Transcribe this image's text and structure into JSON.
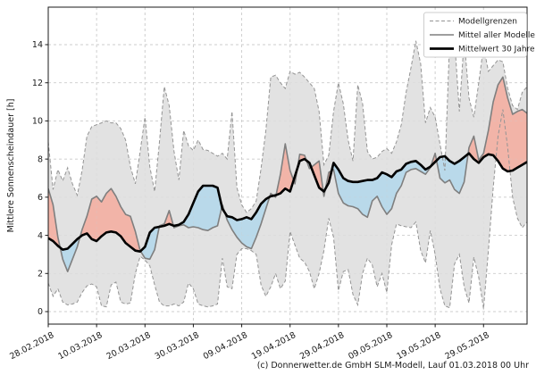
{
  "chart_data": {
    "type": "line",
    "title": "",
    "ylabel": "Mittlere Sonnenscheindauer [h]",
    "caption": "(c) Donnerwetter.de GmbH SLM-Modell, Lauf 01.03.2018 00 Uhr",
    "grid": true,
    "legend_position": "top-right",
    "legend": [
      "Modellgrenzen",
      "Mittel aller Modelle",
      "Mittelwert 30 Jahre"
    ],
    "y_ticks": [
      0,
      2,
      4,
      6,
      8,
      10,
      12,
      14
    ],
    "ylim": [
      -0.65,
      15.97
    ],
    "x_tick_days": [
      0,
      10,
      20,
      30,
      40,
      50,
      60,
      70,
      80,
      90
    ],
    "x_tick_labels": [
      "28.02.2018",
      "10.03.2018",
      "20.03.2018",
      "30.03.2018",
      "09.04.2018",
      "19.04.2018",
      "29.04.2018",
      "09.05.2018",
      "19.05.2018",
      "29.05.2018"
    ],
    "xlim_days": [
      0,
      99
    ],
    "x_axis_note": "Tage ab 28.02.2018, 1 Wert pro Tag",
    "colors": {
      "band_fill": "#e2e2e2",
      "band_edge": "#949494",
      "model_mean_line": "#7f7f7f",
      "mean_30y_line": "#000000",
      "above_mean_fill": "#f2b4a8",
      "below_mean_fill": "#b9d9ea",
      "grid_line": "#cdcdcd",
      "axis": "#1a1a1a"
    },
    "series": [
      {
        "name": "Modellgrenzen (Minimum)",
        "role": "band_min",
        "style": "dashed",
        "values": [
          1.5,
          0.8,
          1.2,
          0.5,
          0.35,
          0.4,
          0.5,
          1.0,
          1.35,
          1.45,
          1.3,
          0.3,
          0.25,
          1.4,
          1.55,
          0.5,
          0.4,
          0.45,
          2.0,
          2.9,
          2.7,
          2.4,
          1.4,
          0.5,
          0.3,
          0.3,
          0.4,
          0.3,
          0.5,
          1.5,
          1.2,
          0.4,
          0.3,
          0.25,
          0.3,
          0.4,
          2.8,
          1.3,
          1.2,
          3.0,
          3.3,
          3.3,
          3.2,
          3.0,
          1.4,
          0.8,
          1.3,
          2.0,
          1.2,
          1.6,
          4.2,
          3.5,
          2.8,
          2.6,
          2.1,
          1.2,
          2.0,
          3.2,
          4.9,
          3.9,
          1.1,
          2.1,
          2.2,
          0.9,
          0.35,
          2.0,
          2.8,
          2.45,
          1.3,
          2.0,
          1.0,
          3.5,
          4.6,
          4.5,
          4.45,
          4.4,
          4.7,
          3.2,
          2.55,
          4.25,
          3.0,
          1.2,
          0.3,
          0.2,
          2.5,
          3.0,
          1.3,
          0.45,
          2.85,
          1.8,
          0.15,
          3.2,
          6.5,
          9.2,
          10.6,
          8.6,
          6.0,
          4.9,
          4.4,
          4.7
        ]
      },
      {
        "name": "Modellgrenzen (Maximum)",
        "role": "band_max",
        "style": "dashed",
        "values": [
          8.9,
          6.4,
          7.45,
          6.85,
          7.55,
          6.7,
          6.1,
          7.4,
          9.2,
          9.7,
          9.8,
          9.9,
          10.0,
          9.9,
          9.9,
          9.6,
          9.0,
          7.6,
          6.7,
          8.4,
          10.2,
          7.6,
          6.3,
          8.9,
          11.8,
          10.8,
          8.4,
          6.9,
          9.5,
          8.7,
          8.45,
          9.0,
          8.5,
          8.45,
          8.3,
          8.15,
          8.3,
          8.0,
          10.5,
          6.5,
          5.6,
          5.2,
          5.4,
          5.8,
          7.5,
          9.5,
          12.3,
          12.4,
          12.0,
          11.7,
          12.6,
          12.45,
          12.55,
          12.3,
          12.0,
          11.7,
          10.5,
          7.7,
          8.2,
          10.5,
          12.0,
          10.9,
          9.0,
          7.9,
          11.9,
          10.9,
          8.4,
          8.0,
          8.1,
          8.4,
          8.55,
          8.3,
          8.9,
          9.8,
          11.5,
          12.8,
          14.2,
          13.0,
          9.9,
          10.7,
          10.2,
          8.8,
          7.4,
          14.3,
          14.3,
          10.5,
          14.3,
          11.2,
          10.2,
          12.0,
          13.9,
          12.6,
          12.9,
          13.2,
          13.1,
          11.7,
          10.8,
          10.6,
          11.5,
          11.8
        ]
      },
      {
        "name": "Mittel aller Modelle",
        "role": "model_mean",
        "style": "solid",
        "values": [
          6.45,
          5.6,
          3.9,
          2.75,
          2.1,
          2.75,
          3.4,
          4.3,
          5.0,
          5.9,
          6.05,
          5.75,
          6.2,
          6.45,
          6.05,
          5.5,
          5.1,
          5.0,
          4.2,
          3.2,
          2.8,
          2.75,
          3.25,
          4.5,
          4.6,
          5.3,
          4.4,
          4.5,
          4.55,
          4.4,
          4.45,
          4.4,
          4.3,
          4.25,
          4.4,
          4.5,
          5.6,
          4.8,
          4.3,
          3.9,
          3.6,
          3.4,
          3.3,
          3.9,
          4.6,
          5.4,
          6.2,
          6.0,
          7.2,
          8.8,
          7.4,
          6.7,
          8.25,
          8.2,
          7.5,
          7.7,
          7.9,
          6.05,
          7.3,
          7.45,
          6.2,
          5.7,
          5.55,
          5.5,
          5.4,
          5.1,
          4.95,
          5.8,
          6.05,
          5.5,
          5.1,
          5.4,
          6.2,
          6.6,
          7.3,
          7.45,
          7.5,
          7.35,
          7.2,
          7.55,
          8.3,
          7.0,
          6.75,
          6.9,
          6.4,
          6.2,
          6.8,
          8.6,
          9.2,
          7.95,
          8.3,
          9.5,
          11.0,
          11.9,
          12.3,
          11.2,
          10.35,
          10.5,
          10.6,
          10.4
        ]
      },
      {
        "name": "Mittelwert 30 Jahre",
        "role": "mean_30y",
        "style": "solid_thick",
        "values": [
          3.85,
          3.7,
          3.45,
          3.25,
          3.3,
          3.55,
          3.8,
          4.0,
          4.1,
          3.8,
          3.7,
          3.95,
          4.15,
          4.2,
          4.15,
          3.95,
          3.6,
          3.4,
          3.2,
          3.15,
          3.4,
          4.15,
          4.4,
          4.45,
          4.5,
          4.6,
          4.5,
          4.55,
          4.7,
          5.1,
          5.7,
          6.3,
          6.6,
          6.6,
          6.6,
          6.5,
          5.4,
          5.0,
          4.95,
          4.8,
          4.85,
          4.95,
          4.85,
          5.2,
          5.65,
          5.9,
          6.05,
          6.1,
          6.2,
          6.45,
          6.3,
          7.1,
          7.9,
          8.0,
          7.8,
          7.15,
          6.5,
          6.3,
          6.75,
          7.8,
          7.45,
          7.0,
          6.85,
          6.8,
          6.8,
          6.85,
          6.9,
          6.9,
          7.0,
          7.3,
          7.2,
          7.05,
          7.35,
          7.45,
          7.75,
          7.85,
          7.9,
          7.7,
          7.45,
          7.6,
          7.85,
          8.1,
          8.15,
          7.9,
          7.75,
          7.9,
          8.1,
          8.3,
          8.0,
          7.8,
          8.1,
          8.25,
          8.2,
          7.9,
          7.5,
          7.35,
          7.4,
          7.55,
          7.7,
          7.85
        ]
      }
    ]
  }
}
